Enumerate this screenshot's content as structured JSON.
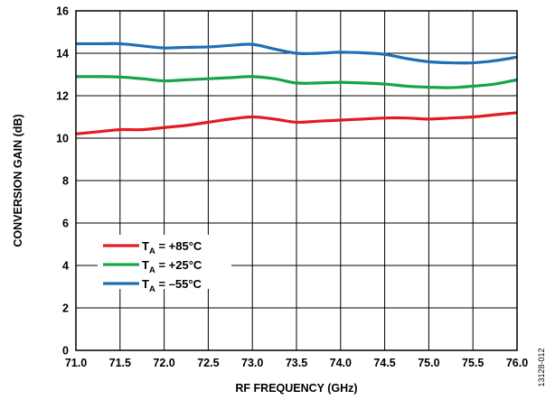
{
  "chart_data": {
    "type": "line",
    "title": "",
    "xlabel": "RF FREQUENCY (GHz)",
    "ylabel": "CONVERSION GAIN (dB)",
    "xlim": [
      71.0,
      76.0
    ],
    "ylim": [
      0,
      16
    ],
    "xticks": [
      71.0,
      71.5,
      72.0,
      72.5,
      73.0,
      73.5,
      74.0,
      74.5,
      75.0,
      75.5,
      76.0
    ],
    "xtick_labels": [
      "71.0",
      "71.5",
      "72.0",
      "72.5",
      "73.0",
      "73.5",
      "74.0",
      "74.5",
      "75.0",
      "75.5",
      "76.0"
    ],
    "yticks": [
      0,
      2,
      4,
      6,
      8,
      10,
      12,
      14,
      16
    ],
    "ytick_labels": [
      "0",
      "2",
      "4",
      "6",
      "8",
      "10",
      "12",
      "14",
      "16"
    ],
    "grid": true,
    "legend_position": "lower-left",
    "x": [
      71.0,
      71.25,
      71.5,
      71.75,
      72.0,
      72.25,
      72.5,
      72.75,
      73.0,
      73.25,
      73.5,
      73.75,
      74.0,
      74.25,
      74.5,
      74.75,
      75.0,
      75.25,
      75.5,
      75.75,
      76.0
    ],
    "series": [
      {
        "legend_main": "T",
        "legend_sub": "A",
        "legend_rest": " = +85°C",
        "color": "#e31b23",
        "values": [
          10.2,
          10.3,
          10.4,
          10.4,
          10.5,
          10.6,
          10.75,
          10.9,
          11.0,
          10.9,
          10.75,
          10.8,
          10.85,
          10.9,
          10.95,
          10.95,
          10.9,
          10.95,
          11.0,
          11.1,
          11.2
        ]
      },
      {
        "legend_main": "T",
        "legend_sub": "A",
        "legend_rest": " = +25°C",
        "color": "#16a34a",
        "values": [
          12.9,
          12.9,
          12.88,
          12.8,
          12.7,
          12.75,
          12.8,
          12.85,
          12.9,
          12.8,
          12.6,
          12.6,
          12.63,
          12.6,
          12.55,
          12.45,
          12.4,
          12.38,
          12.45,
          12.55,
          12.75
        ]
      },
      {
        "legend_main": "T",
        "legend_sub": "A",
        "legend_rest": " = –55°C",
        "color": "#1f6fb5",
        "values": [
          14.45,
          14.45,
          14.45,
          14.35,
          14.25,
          14.28,
          14.3,
          14.37,
          14.42,
          14.2,
          14.0,
          14.0,
          14.05,
          14.02,
          13.95,
          13.75,
          13.6,
          13.55,
          13.55,
          13.65,
          13.82
        ]
      }
    ]
  },
  "figure_id": "13128-012"
}
